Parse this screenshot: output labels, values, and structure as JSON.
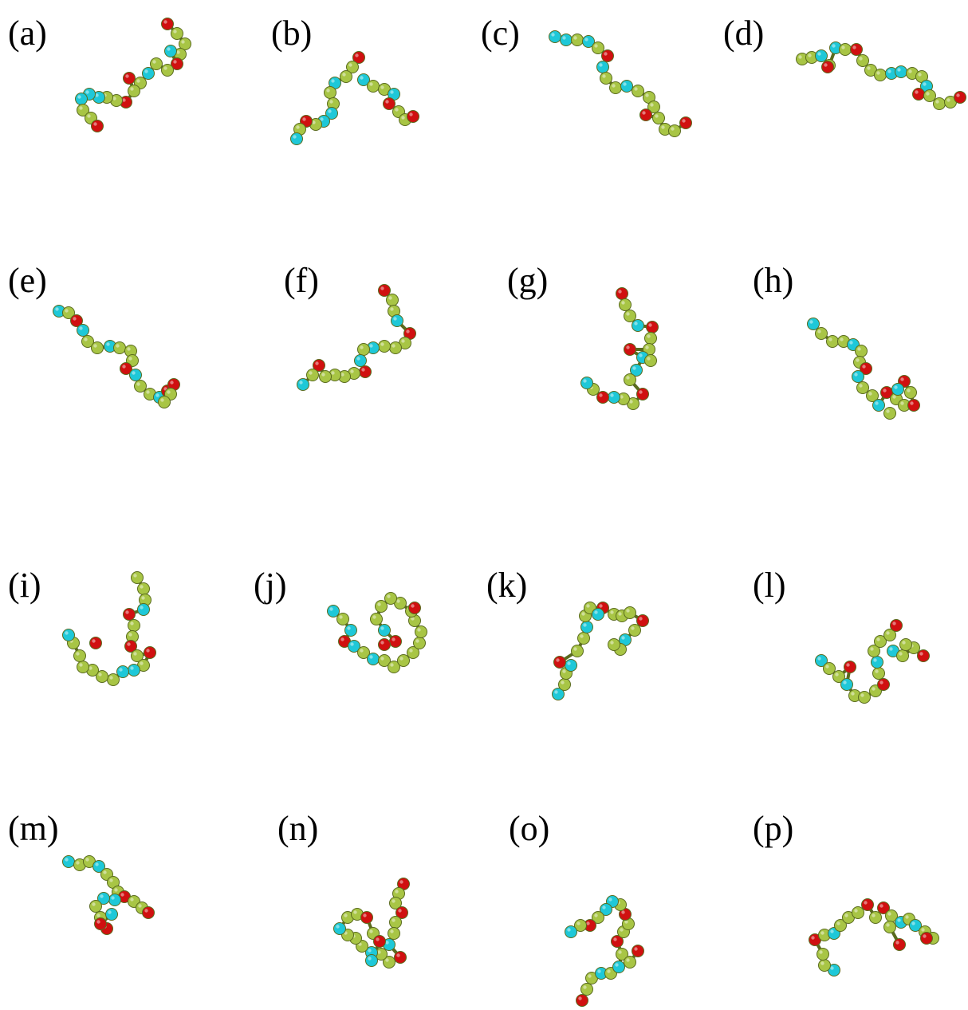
{
  "colors": {
    "background": "#ffffff",
    "bead_green": "#a8c545",
    "bead_cyan": "#1ec8d8",
    "bead_red": "#d01010",
    "bead_outline": "#5a6b1e"
  },
  "legend_note": "",
  "panels": [
    {
      "label": "(a)"
    },
    {
      "label": "(b)"
    },
    {
      "label": "(c)"
    },
    {
      "label": "(d)"
    },
    {
      "label": "(e)"
    },
    {
      "label": "(f)"
    },
    {
      "label": "(g)"
    },
    {
      "label": "(h)"
    },
    {
      "label": "(i)"
    },
    {
      "label": "(j)"
    },
    {
      "label": "(k)"
    },
    {
      "label": "(l)"
    },
    {
      "label": "(m)"
    },
    {
      "label": "(n)"
    },
    {
      "label": "(o)"
    },
    {
      "label": "(p)"
    }
  ]
}
